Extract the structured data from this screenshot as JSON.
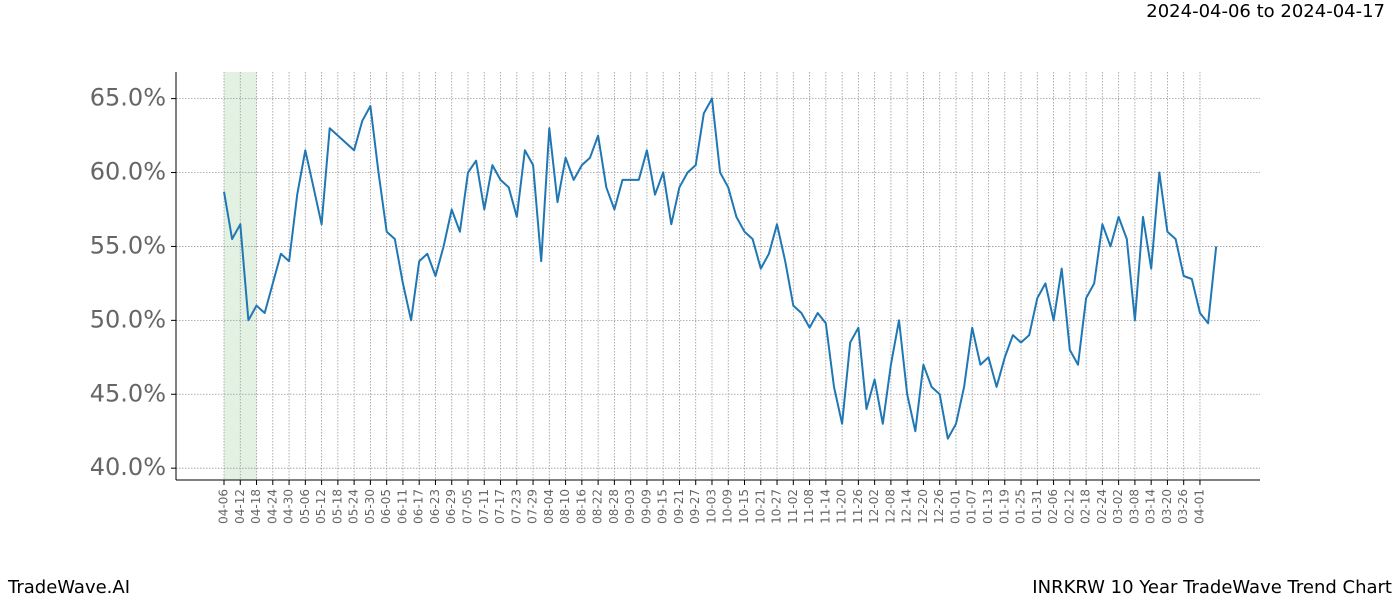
{
  "header": {
    "date_range": "2024-04-06 to 2024-04-17"
  },
  "footer": {
    "brand": "TradeWave.AI",
    "chart_name": "INRKRW 10 Year TradeWave Trend Chart"
  },
  "chart_data": {
    "type": "line",
    "categories": [
      "04-06",
      null,
      "04-12",
      null,
      "04-18",
      null,
      "04-24",
      null,
      "04-30",
      null,
      "05-06",
      null,
      "05-12",
      null,
      "05-18",
      null,
      "05-24",
      null,
      "05-30",
      null,
      "06-05",
      null,
      "06-11",
      null,
      "06-17",
      null,
      "06-23",
      null,
      "06-29",
      null,
      "07-05",
      null,
      "07-11",
      null,
      "07-17",
      null,
      "07-23",
      null,
      "07-29",
      null,
      "08-04",
      null,
      "08-10",
      null,
      "08-16",
      null,
      "08-22",
      null,
      "08-28",
      null,
      "09-03",
      null,
      "09-09",
      null,
      "09-15",
      null,
      "09-21",
      null,
      "09-27",
      null,
      "10-03",
      null,
      "10-09",
      null,
      "10-15",
      null,
      "10-21",
      null,
      "10-27",
      null,
      "11-02",
      null,
      "11-08",
      null,
      "11-14",
      null,
      "11-20",
      null,
      "11-26",
      null,
      "12-02",
      null,
      "12-08",
      null,
      "12-14",
      null,
      "12-20",
      null,
      "12-26",
      null,
      "01-01",
      null,
      "01-07",
      null,
      "01-13",
      null,
      "01-19",
      null,
      "01-25",
      null,
      "01-31",
      null,
      "02-06",
      null,
      "02-12",
      null,
      "02-18",
      null,
      "02-24",
      null,
      "03-02",
      null,
      "03-08",
      null,
      "03-14",
      null,
      "03-20",
      null,
      "03-26",
      null,
      "04-01",
      null,
      null
    ],
    "series": [
      {
        "color": "#1f77b4",
        "values": [
          58.7,
          55.5,
          56.5,
          50,
          51,
          50.5,
          52.5,
          54.5,
          54,
          58.5,
          61.5,
          59,
          56.5,
          63,
          62.5,
          62,
          61.5,
          63.5,
          64.5,
          60,
          56,
          55.5,
          52.5,
          50,
          54,
          54.5,
          53,
          55,
          57.5,
          56,
          60,
          60.8,
          57.5,
          60.5,
          59.5,
          59,
          57,
          61.5,
          60.5,
          54,
          63,
          58,
          61,
          59.5,
          60.5,
          61,
          62.5,
          59,
          57.5,
          59.5,
          59.5,
          59.5,
          61.5,
          58.5,
          60,
          56.5,
          59,
          60,
          60.5,
          64,
          65,
          60,
          59,
          57,
          56,
          55.5,
          53.5,
          54.5,
          56.5,
          54,
          51,
          50.5,
          49.5,
          50.5,
          49.8,
          45.5,
          43,
          48.5,
          49.5,
          44,
          46,
          43,
          47,
          50,
          45,
          42.5,
          47,
          45.5,
          45,
          42,
          43,
          45.5,
          49.5,
          47,
          47.5,
          45.5,
          47.5,
          49,
          48.5,
          49,
          51.5,
          52.5,
          50,
          53.5,
          48,
          47,
          51.5,
          52.5,
          56.5,
          55,
          57,
          55.5,
          50,
          57,
          53.5,
          60,
          56,
          55.5,
          53,
          52.8,
          50.5,
          49.8,
          55
        ]
      }
    ],
    "ylim": [
      39.2,
      66.8
    ],
    "yticks": [
      {
        "value": 40,
        "label": "40.0%"
      },
      {
        "value": 45,
        "label": "45.0%"
      },
      {
        "value": 50,
        "label": "50.0%"
      },
      {
        "value": 55,
        "label": "55.0%"
      },
      {
        "value": 60,
        "label": "60.0%"
      },
      {
        "value": 65,
        "label": "65.0%"
      }
    ],
    "grid": true,
    "highlight": {
      "start": "04-06",
      "end": "04-18",
      "color": "#e3f1e3"
    }
  }
}
